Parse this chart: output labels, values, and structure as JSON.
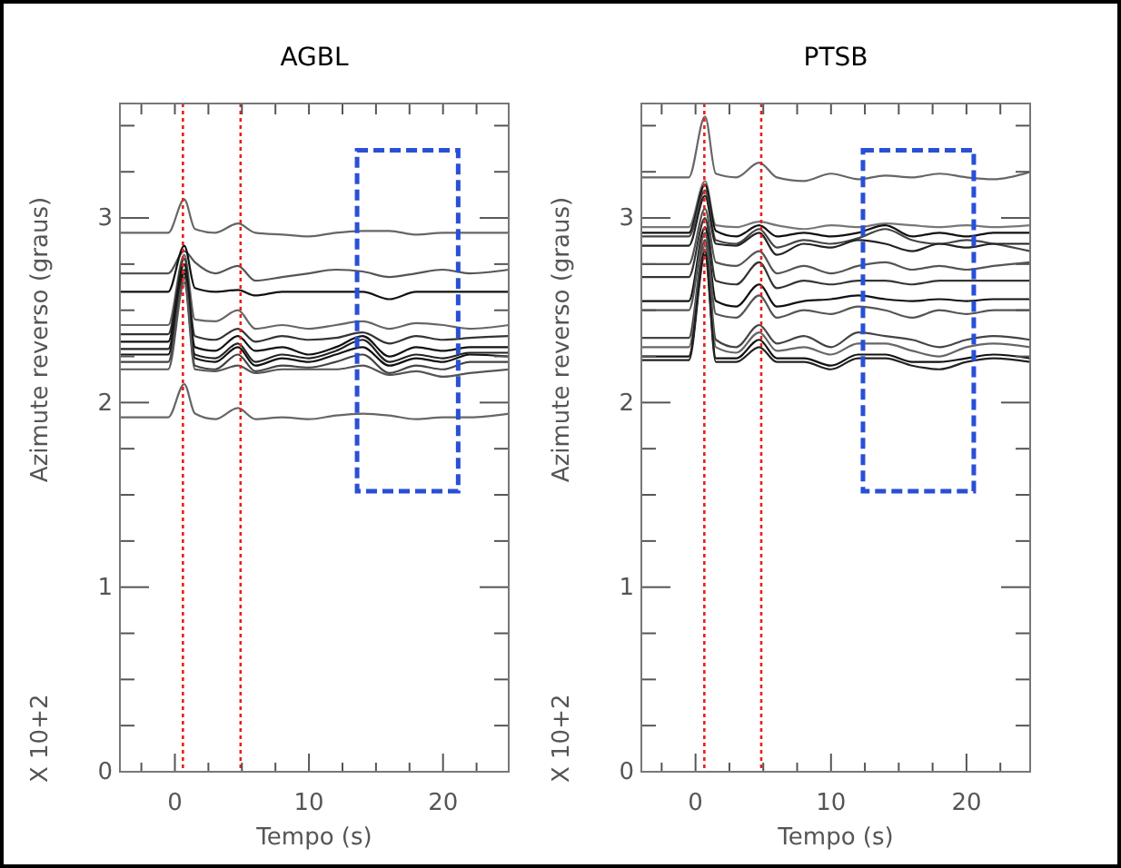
{
  "chart_data": [
    {
      "type": "line",
      "title": "AGBL",
      "xlabel": "Tempo (s)",
      "ylabel": "Azimute reverso (graus)",
      "annotations": [
        "X 10+2"
      ],
      "grid": false,
      "xlim": [
        -4.1,
        24.9
      ],
      "ylim": [
        0,
        3.62
      ],
      "xticks": [
        {
          "value": -2.5,
          "label": null
        },
        0,
        {
          "value": 2.5,
          "label": null
        },
        {
          "value": 5,
          "label": null
        },
        {
          "value": 7.5,
          "label": null
        },
        10,
        {
          "value": 12.5,
          "label": null
        },
        {
          "value": 15,
          "label": null
        },
        {
          "value": 17.5,
          "label": null
        },
        20,
        {
          "value": 22.5,
          "label": null
        }
      ],
      "yticks": [
        0,
        {
          "value": 0.25,
          "label": null
        },
        {
          "value": 0.5,
          "label": null
        },
        {
          "value": 0.75,
          "label": null
        },
        1,
        {
          "value": 1.25,
          "label": null
        },
        {
          "value": 1.5,
          "label": null
        },
        {
          "value": 1.75,
          "label": null
        },
        2,
        {
          "value": 2.25,
          "label": null
        },
        {
          "value": 2.5,
          "label": null
        },
        {
          "value": 2.75,
          "label": null
        },
        3,
        {
          "value": 3.25,
          "label": null
        },
        {
          "value": 3.5,
          "label": null
        }
      ],
      "x": [
        -4.1,
        -0.5,
        0.7,
        1.5,
        3,
        4.7,
        6,
        8,
        10,
        12,
        14,
        16,
        18,
        20,
        22,
        24.9
      ],
      "ref_lines": [
        {
          "axis": "x",
          "value": 0.6,
          "color": "#e8201c",
          "line_style": "dotted"
        },
        {
          "axis": "x",
          "value": 4.9,
          "color": "#e8201c",
          "line_style": "dotted"
        }
      ],
      "series": [
        {
          "color": "#666666",
          "values": [
            2.92,
            2.92,
            3.1,
            2.94,
            2.92,
            2.97,
            2.92,
            2.91,
            2.9,
            2.92,
            2.93,
            2.93,
            2.91,
            2.92,
            2.92,
            2.92
          ]
        },
        {
          "color": "#555555",
          "values": [
            2.7,
            2.7,
            2.82,
            2.76,
            2.7,
            2.74,
            2.66,
            2.68,
            2.7,
            2.72,
            2.71,
            2.68,
            2.7,
            2.72,
            2.7,
            2.72
          ]
        },
        {
          "color": "#111111",
          "values": [
            2.6,
            2.6,
            2.85,
            2.62,
            2.6,
            2.61,
            2.58,
            2.6,
            2.6,
            2.6,
            2.6,
            2.56,
            2.6,
            2.6,
            2.6,
            2.6
          ]
        },
        {
          "color": "#666666",
          "values": [
            2.42,
            2.42,
            2.8,
            2.45,
            2.44,
            2.5,
            2.4,
            2.42,
            2.4,
            2.42,
            2.44,
            2.4,
            2.43,
            2.42,
            2.4,
            2.42
          ]
        },
        {
          "color": "#333333",
          "values": [
            2.37,
            2.37,
            2.78,
            2.36,
            2.34,
            2.4,
            2.33,
            2.36,
            2.34,
            2.35,
            2.38,
            2.32,
            2.36,
            2.34,
            2.35,
            2.36
          ]
        },
        {
          "color": "#111111",
          "values": [
            2.33,
            2.33,
            2.75,
            2.3,
            2.28,
            2.36,
            2.28,
            2.3,
            2.26,
            2.3,
            2.36,
            2.25,
            2.3,
            2.28,
            2.3,
            2.3
          ]
        },
        {
          "color": "#222222",
          "values": [
            2.29,
            2.29,
            2.72,
            2.26,
            2.24,
            2.32,
            2.22,
            2.26,
            2.24,
            2.28,
            2.34,
            2.22,
            2.26,
            2.24,
            2.27,
            2.27
          ]
        },
        {
          "color": "#111111",
          "values": [
            2.26,
            2.26,
            2.7,
            2.24,
            2.22,
            2.3,
            2.2,
            2.24,
            2.22,
            2.26,
            2.3,
            2.2,
            2.24,
            2.22,
            2.26,
            2.25
          ]
        },
        {
          "color": "#444444",
          "values": [
            2.22,
            2.22,
            2.68,
            2.2,
            2.18,
            2.26,
            2.17,
            2.2,
            2.19,
            2.22,
            2.26,
            2.16,
            2.2,
            2.18,
            2.22,
            2.22
          ]
        },
        {
          "color": "#555555",
          "values": [
            2.18,
            2.18,
            2.65,
            2.18,
            2.17,
            2.2,
            2.16,
            2.18,
            2.18,
            2.18,
            2.2,
            2.15,
            2.17,
            2.14,
            2.16,
            2.18
          ]
        },
        {
          "color": "#666666",
          "values": [
            1.92,
            1.92,
            2.1,
            1.94,
            1.91,
            1.97,
            1.91,
            1.92,
            1.91,
            1.93,
            1.94,
            1.93,
            1.91,
            1.92,
            1.92,
            1.94
          ]
        }
      ]
    },
    {
      "type": "line",
      "title": "PTSB",
      "xlabel": "Tempo (s)",
      "ylabel": "Azimute reverso (graus)",
      "annotations": [
        "X 10+2"
      ],
      "grid": false,
      "xlim": [
        -4.0,
        24.7
      ],
      "ylim": [
        0,
        3.62
      ],
      "xticks": [
        {
          "value": -2.5,
          "label": null
        },
        0,
        {
          "value": 2.5,
          "label": null
        },
        {
          "value": 5,
          "label": null
        },
        {
          "value": 7.5,
          "label": null
        },
        10,
        {
          "value": 12.5,
          "label": null
        },
        {
          "value": 15,
          "label": null
        },
        {
          "value": 17.5,
          "label": null
        },
        20,
        {
          "value": 22.5,
          "label": null
        }
      ],
      "yticks": [
        0,
        {
          "value": 0.25,
          "label": null
        },
        {
          "value": 0.5,
          "label": null
        },
        {
          "value": 0.75,
          "label": null
        },
        1,
        {
          "value": 1.25,
          "label": null
        },
        {
          "value": 1.5,
          "label": null
        },
        {
          "value": 1.75,
          "label": null
        },
        2,
        {
          "value": 2.25,
          "label": null
        },
        {
          "value": 2.5,
          "label": null
        },
        {
          "value": 2.75,
          "label": null
        },
        3,
        {
          "value": 3.25,
          "label": null
        },
        {
          "value": 3.5,
          "label": null
        }
      ],
      "x": [
        -4.0,
        -0.5,
        0.7,
        1.5,
        3,
        4.7,
        6,
        8,
        10,
        12,
        14,
        16,
        18,
        20,
        22,
        24.7
      ],
      "ref_lines": [
        {
          "axis": "x",
          "value": 0.65,
          "color": "#e8201c",
          "line_style": "dotted"
        },
        {
          "axis": "x",
          "value": 4.85,
          "color": "#e8201c",
          "line_style": "dotted"
        }
      ],
      "series": [
        {
          "color": "#666666",
          "values": [
            3.22,
            3.22,
            3.55,
            3.24,
            3.22,
            3.3,
            3.22,
            3.2,
            3.24,
            3.21,
            3.23,
            3.22,
            3.24,
            3.22,
            3.21,
            3.25
          ]
        },
        {
          "color": "#777777",
          "values": [
            2.95,
            2.95,
            3.2,
            2.96,
            2.95,
            2.98,
            2.96,
            2.94,
            2.96,
            2.95,
            2.97,
            2.96,
            2.95,
            2.96,
            2.95,
            2.96
          ]
        },
        {
          "color": "#111111",
          "values": [
            2.92,
            2.92,
            3.18,
            2.93,
            2.9,
            2.96,
            2.9,
            2.92,
            2.9,
            2.92,
            2.96,
            2.9,
            2.92,
            2.9,
            2.92,
            2.92
          ]
        },
        {
          "color": "#444444",
          "values": [
            2.9,
            2.9,
            3.15,
            2.88,
            2.86,
            2.94,
            2.84,
            2.88,
            2.86,
            2.89,
            2.94,
            2.88,
            2.86,
            2.88,
            2.86,
            2.82
          ]
        },
        {
          "color": "#222222",
          "values": [
            2.85,
            2.85,
            3.12,
            2.86,
            2.85,
            2.92,
            2.8,
            2.86,
            2.84,
            2.88,
            2.86,
            2.82,
            2.86,
            2.84,
            2.86,
            2.86
          ]
        },
        {
          "color": "#555555",
          "values": [
            2.75,
            2.75,
            3.05,
            2.76,
            2.74,
            2.82,
            2.7,
            2.74,
            2.7,
            2.74,
            2.76,
            2.72,
            2.74,
            2.72,
            2.74,
            2.76
          ]
        },
        {
          "color": "#333333",
          "values": [
            2.68,
            2.68,
            3.0,
            2.66,
            2.64,
            2.76,
            2.62,
            2.66,
            2.64,
            2.66,
            2.66,
            2.64,
            2.66,
            2.66,
            2.66,
            2.66
          ]
        },
        {
          "color": "#111111",
          "values": [
            2.55,
            2.55,
            2.95,
            2.55,
            2.52,
            2.64,
            2.52,
            2.55,
            2.56,
            2.58,
            2.56,
            2.55,
            2.56,
            2.55,
            2.56,
            2.56
          ]
        },
        {
          "color": "#555555",
          "values": [
            2.5,
            2.5,
            2.92,
            2.48,
            2.46,
            2.58,
            2.46,
            2.5,
            2.48,
            2.52,
            2.5,
            2.46,
            2.5,
            2.48,
            2.5,
            2.5
          ]
        },
        {
          "color": "#444444",
          "values": [
            2.35,
            2.35,
            2.88,
            2.34,
            2.3,
            2.42,
            2.32,
            2.36,
            2.3,
            2.38,
            2.36,
            2.34,
            2.3,
            2.34,
            2.36,
            2.34
          ]
        },
        {
          "color": "#666666",
          "values": [
            2.3,
            2.3,
            2.85,
            2.3,
            2.27,
            2.38,
            2.28,
            2.3,
            2.26,
            2.32,
            2.32,
            2.28,
            2.25,
            2.3,
            2.32,
            2.3
          ]
        },
        {
          "color": "#111111",
          "values": [
            2.25,
            2.25,
            2.82,
            2.24,
            2.24,
            2.34,
            2.24,
            2.24,
            2.2,
            2.26,
            2.26,
            2.22,
            2.22,
            2.24,
            2.26,
            2.24
          ]
        },
        {
          "color": "#222222",
          "values": [
            2.23,
            2.23,
            2.8,
            2.22,
            2.22,
            2.3,
            2.22,
            2.22,
            2.18,
            2.24,
            2.24,
            2.2,
            2.18,
            2.22,
            2.24,
            2.22
          ]
        }
      ]
    }
  ]
}
